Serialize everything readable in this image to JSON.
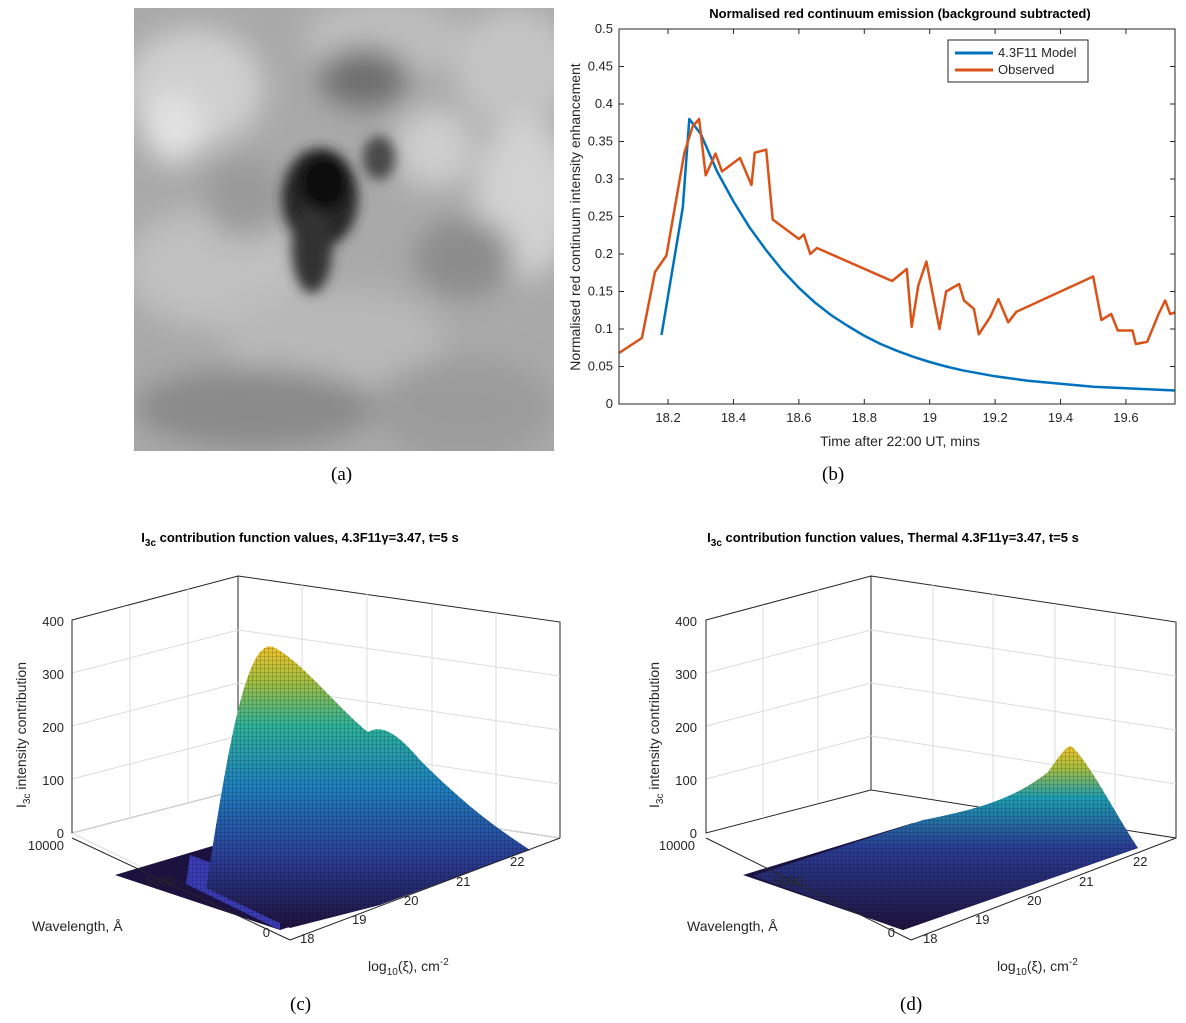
{
  "captions": {
    "a": "(a)",
    "b": "(b)",
    "c": "(c)",
    "d": "(d)"
  },
  "panel_a": {
    "image": "grayscale solar image with dark central feature"
  },
  "chart_data": [
    {
      "panel": "b",
      "type": "line",
      "title": "Normalised red continuum emission (background subtracted)",
      "xlabel": "Time after 22:00 UT, mins",
      "ylabel": "Normalised red continuum intensity enhancement",
      "xlim": [
        18.05,
        19.75
      ],
      "ylim": [
        0,
        0.5
      ],
      "xticks": [
        "18.2",
        "18.4",
        "18.6",
        "18.8",
        "19",
        "19.2",
        "19.4",
        "19.6"
      ],
      "xtick_values": [
        18.2,
        18.4,
        18.6,
        18.8,
        19.0,
        19.2,
        19.4,
        19.6
      ],
      "yticks": [
        "0",
        "0.05",
        "0.1",
        "0.15",
        "0.2",
        "0.25",
        "0.3",
        "0.35",
        "0.4",
        "0.45",
        "0.5"
      ],
      "ytick_values": [
        0,
        0.05,
        0.1,
        0.15,
        0.2,
        0.25,
        0.3,
        0.35,
        0.4,
        0.45,
        0.5
      ],
      "legend_position": "top-right",
      "series": [
        {
          "name": "4.3F11 Model",
          "color": "#0072BD",
          "points": [
            [
              18.18,
              0.092
            ],
            [
              18.245,
              0.262
            ],
            [
              18.265,
              0.38
            ],
            [
              18.3,
              0.36
            ],
            [
              18.35,
              0.31
            ],
            [
              18.4,
              0.27
            ],
            [
              18.45,
              0.235
            ],
            [
              18.5,
              0.205
            ],
            [
              18.55,
              0.178
            ],
            [
              18.6,
              0.155
            ],
            [
              18.65,
              0.135
            ],
            [
              18.7,
              0.118
            ],
            [
              18.75,
              0.104
            ],
            [
              18.8,
              0.091
            ],
            [
              18.85,
              0.08
            ],
            [
              18.9,
              0.071
            ],
            [
              18.95,
              0.063
            ],
            [
              19.0,
              0.056
            ],
            [
              19.05,
              0.05
            ],
            [
              19.1,
              0.045
            ],
            [
              19.15,
              0.041
            ],
            [
              19.2,
              0.037
            ],
            [
              19.25,
              0.034
            ],
            [
              19.3,
              0.031
            ],
            [
              19.35,
              0.029
            ],
            [
              19.4,
              0.027
            ],
            [
              19.45,
              0.025
            ],
            [
              19.5,
              0.023
            ],
            [
              19.55,
              0.022
            ],
            [
              19.6,
              0.021
            ],
            [
              19.65,
              0.02
            ],
            [
              19.7,
              0.019
            ],
            [
              19.75,
              0.018
            ]
          ]
        },
        {
          "name": "Observed",
          "color": "#D95319",
          "points": [
            [
              18.05,
              0.068
            ],
            [
              18.12,
              0.088
            ],
            [
              18.16,
              0.176
            ],
            [
              18.195,
              0.198
            ],
            [
              18.25,
              0.335
            ],
            [
              18.275,
              0.37
            ],
            [
              18.295,
              0.38
            ],
            [
              18.315,
              0.305
            ],
            [
              18.345,
              0.334
            ],
            [
              18.365,
              0.31
            ],
            [
              18.42,
              0.328
            ],
            [
              18.455,
              0.292
            ],
            [
              18.465,
              0.335
            ],
            [
              18.5,
              0.339
            ],
            [
              18.52,
              0.246
            ],
            [
              18.6,
              0.22
            ],
            [
              18.615,
              0.226
            ],
            [
              18.635,
              0.2
            ],
            [
              18.655,
              0.208
            ],
            [
              18.885,
              0.164
            ],
            [
              18.93,
              0.18
            ],
            [
              18.945,
              0.103
            ],
            [
              18.965,
              0.158
            ],
            [
              18.99,
              0.19
            ],
            [
              19.03,
              0.1
            ],
            [
              19.05,
              0.15
            ],
            [
              19.09,
              0.16
            ],
            [
              19.105,
              0.138
            ],
            [
              19.135,
              0.127
            ],
            [
              19.15,
              0.093
            ],
            [
              19.185,
              0.116
            ],
            [
              19.21,
              0.14
            ],
            [
              19.24,
              0.109
            ],
            [
              19.265,
              0.123
            ],
            [
              19.5,
              0.17
            ],
            [
              19.525,
              0.112
            ],
            [
              19.555,
              0.12
            ],
            [
              19.575,
              0.098
            ],
            [
              19.62,
              0.098
            ],
            [
              19.63,
              0.08
            ],
            [
              19.665,
              0.083
            ],
            [
              19.7,
              0.12
            ],
            [
              19.72,
              0.138
            ],
            [
              19.735,
              0.12
            ],
            [
              19.75,
              0.122
            ]
          ]
        }
      ]
    },
    {
      "panel": "c",
      "type": "surface",
      "title": "I3c contribution function values, 4.3F11γ=3.47, t=5 s",
      "title_main": "I",
      "title_sub": "3c",
      "title_rest": " contribution function values, 4.3F11γ=3.47, t=5 s",
      "zlabel_main": "I",
      "zlabel_sub": "3c",
      "zlabel_rest": " intensity contribution",
      "ylabel": "Wavelength, Å",
      "xlabel_main": "log",
      "xlabel_sub": "10",
      "xlabel_rest": "(ξ), cm",
      "xlabel_sup": "-2",
      "zticks": [
        "0",
        "100",
        "200",
        "300",
        "400"
      ],
      "yticks": [
        "0",
        "5000",
        "10000"
      ],
      "xticks": [
        "18",
        "19",
        "20",
        "21",
        "22"
      ],
      "zlim": [
        0,
        400
      ],
      "peak_value": 350,
      "secondary_peak_value": 205
    },
    {
      "panel": "d",
      "type": "surface",
      "title": "I3c contribution function values, Thermal 4.3F11γ=3.47, t=5 s",
      "title_main": "I",
      "title_sub": "3c",
      "title_rest": " contribution function values, Thermal 4.3F11γ=3.47, t=5 s",
      "zlabel_main": "I",
      "zlabel_sub": "3c",
      "zlabel_rest": " intensity contribution",
      "ylabel": "Wavelength, Å",
      "xlabel_main": "log",
      "xlabel_sub": "10",
      "xlabel_rest": "(ξ), cm",
      "xlabel_sup": "-2",
      "zticks": [
        "0",
        "100",
        "200",
        "300",
        "400"
      ],
      "yticks": [
        "0",
        "5000",
        "10000"
      ],
      "xticks": [
        "18",
        "19",
        "20",
        "21",
        "22"
      ],
      "zlim": [
        0,
        400
      ],
      "peak_value": 140
    }
  ]
}
